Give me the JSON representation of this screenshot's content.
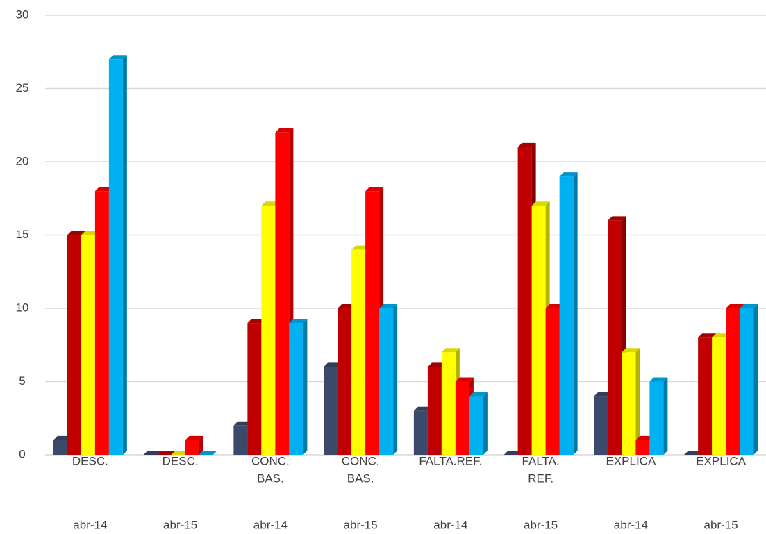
{
  "chart_data": {
    "type": "bar3d",
    "categories": [
      [
        "DESC."
      ],
      [
        "DESC."
      ],
      [
        "CONC.",
        "BAS."
      ],
      [
        "CONC.",
        "BAS."
      ],
      [
        "FALTA.REF."
      ],
      [
        "FALTA.",
        "REF."
      ],
      [
        "EXPLICA"
      ],
      [
        "EXPLICA"
      ]
    ],
    "periods": [
      "abr-14",
      "abr-15",
      "abr-14",
      "abr-15",
      "abr-14",
      "abr-15",
      "abr-14",
      "abr-15"
    ],
    "series": [
      {
        "color": "#3b4a6b",
        "values": [
          1,
          0,
          2,
          6,
          3,
          0,
          4,
          0
        ]
      },
      {
        "color": "#c00000",
        "values": [
          15,
          0,
          9,
          10,
          6,
          21,
          16,
          8
        ]
      },
      {
        "color": "#ffff00",
        "values": [
          15,
          0,
          17,
          14,
          7,
          17,
          7,
          8
        ]
      },
      {
        "color": "#ff0000",
        "values": [
          18,
          1,
          22,
          18,
          5,
          10,
          1,
          10
        ]
      },
      {
        "color": "#00b0f0",
        "values": [
          27,
          0,
          9,
          10,
          4,
          19,
          5,
          10
        ]
      }
    ],
    "ylim": [
      0,
      30
    ],
    "yticks": [
      0,
      5,
      10,
      15,
      20,
      25,
      30
    ],
    "grid": true
  }
}
